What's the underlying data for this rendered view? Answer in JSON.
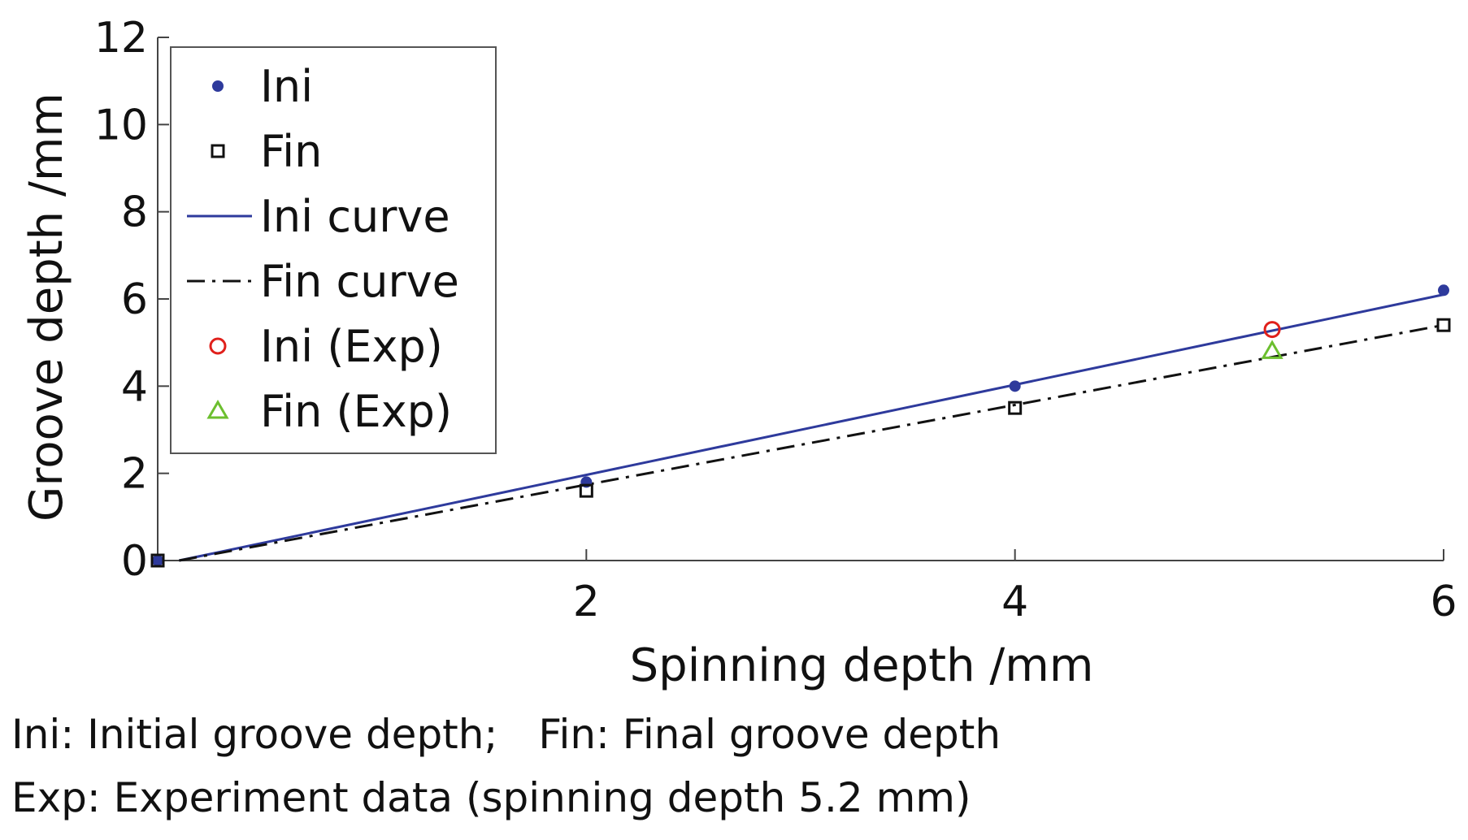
{
  "chart_data": {
    "type": "scatter",
    "xlabel": "Spinning depth /mm",
    "ylabel": "Groove depth /mm",
    "xlim": [
      0,
      6
    ],
    "ylim": [
      0,
      12
    ],
    "xticks": [
      2,
      4,
      6
    ],
    "yticks": [
      0,
      2,
      4,
      6,
      8,
      10,
      12
    ],
    "legend_position": "top-left",
    "series": [
      {
        "name": "Ini",
        "kind": "marker",
        "marker": "dot",
        "color": "#2e3a9c",
        "points": [
          [
            0,
            0
          ],
          [
            2,
            1.8
          ],
          [
            4,
            4.0
          ],
          [
            6,
            6.2
          ]
        ]
      },
      {
        "name": "Fin",
        "kind": "marker",
        "marker": "square",
        "color": "#111111",
        "points": [
          [
            0,
            0
          ],
          [
            2,
            1.6
          ],
          [
            4,
            3.5
          ],
          [
            6,
            5.4
          ]
        ]
      },
      {
        "name": "Ini curve",
        "kind": "line",
        "style": "solid",
        "color": "#2e3a9c",
        "points": [
          [
            0.1,
            0
          ],
          [
            6,
            6.1
          ]
        ]
      },
      {
        "name": "Fin curve",
        "kind": "line",
        "style": "dashdot",
        "color": "#111111",
        "points": [
          [
            0.1,
            0
          ],
          [
            6,
            5.4
          ]
        ]
      },
      {
        "name": "Ini (Exp)",
        "kind": "marker",
        "marker": "circle",
        "color": "#e0201b",
        "points": [
          [
            5.2,
            5.3
          ]
        ]
      },
      {
        "name": "Fin (Exp)",
        "kind": "marker",
        "marker": "triangle",
        "color": "#6cbf2f",
        "points": [
          [
            5.2,
            4.8
          ]
        ]
      }
    ]
  },
  "notes": {
    "ini_def": "Ini: Initial groove depth;",
    "fin_def": "Fin: Final groove depth",
    "exp_def": "Exp: Experiment data (spinning depth 5.2 mm)"
  }
}
